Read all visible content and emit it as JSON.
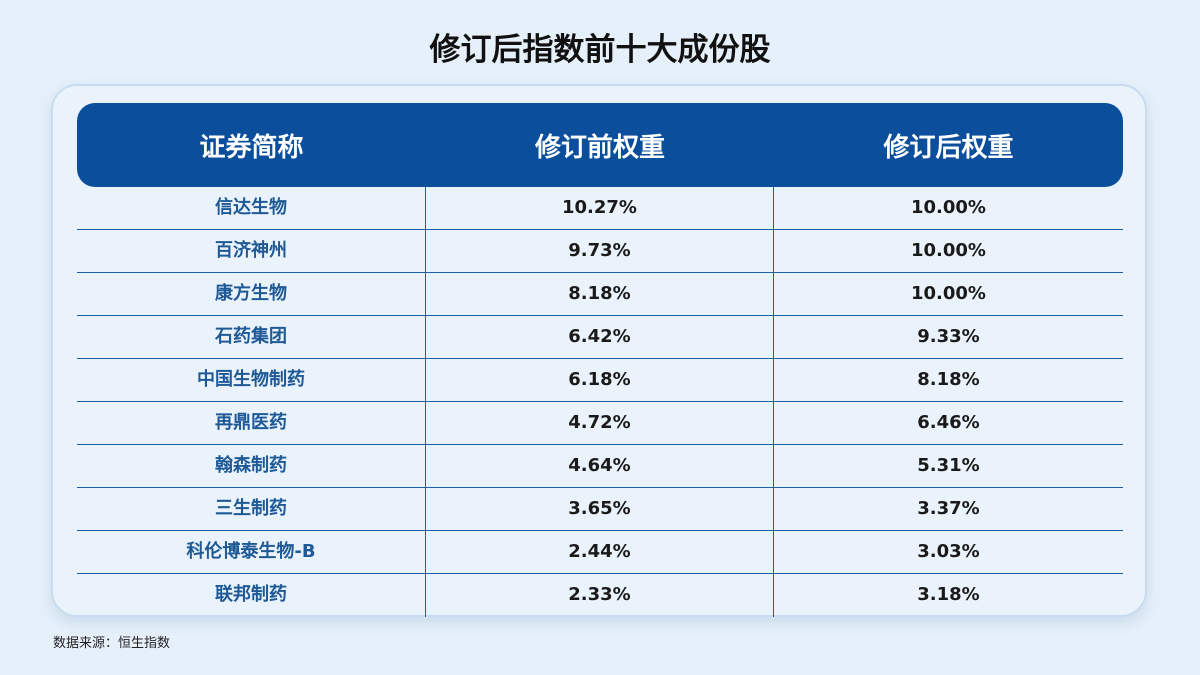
{
  "title": "修订后指数前十大成份股",
  "source": "数据来源：恒生指数",
  "chart_data": {
    "type": "table",
    "title": "修订后指数前十大成份股",
    "columns": [
      "证券简称",
      "修订前权重",
      "修订后权重"
    ],
    "rows": [
      [
        "信达生物",
        "10.27%",
        "10.00%"
      ],
      [
        "百济神州",
        "9.73%",
        "10.00%"
      ],
      [
        "康方生物",
        "8.18%",
        "10.00%"
      ],
      [
        "石药集团",
        "6.42%",
        "9.33%"
      ],
      [
        "中国生物制药",
        "6.18%",
        "8.18%"
      ],
      [
        "再鼎医药",
        "4.72%",
        "6.46%"
      ],
      [
        "翰森制药",
        "4.64%",
        "5.31%"
      ],
      [
        "三生制药",
        "3.65%",
        "3.37%"
      ],
      [
        "科伦博泰生物-B",
        "2.44%",
        "3.03%"
      ],
      [
        "联邦制药",
        "2.33%",
        "3.18%"
      ]
    ]
  }
}
